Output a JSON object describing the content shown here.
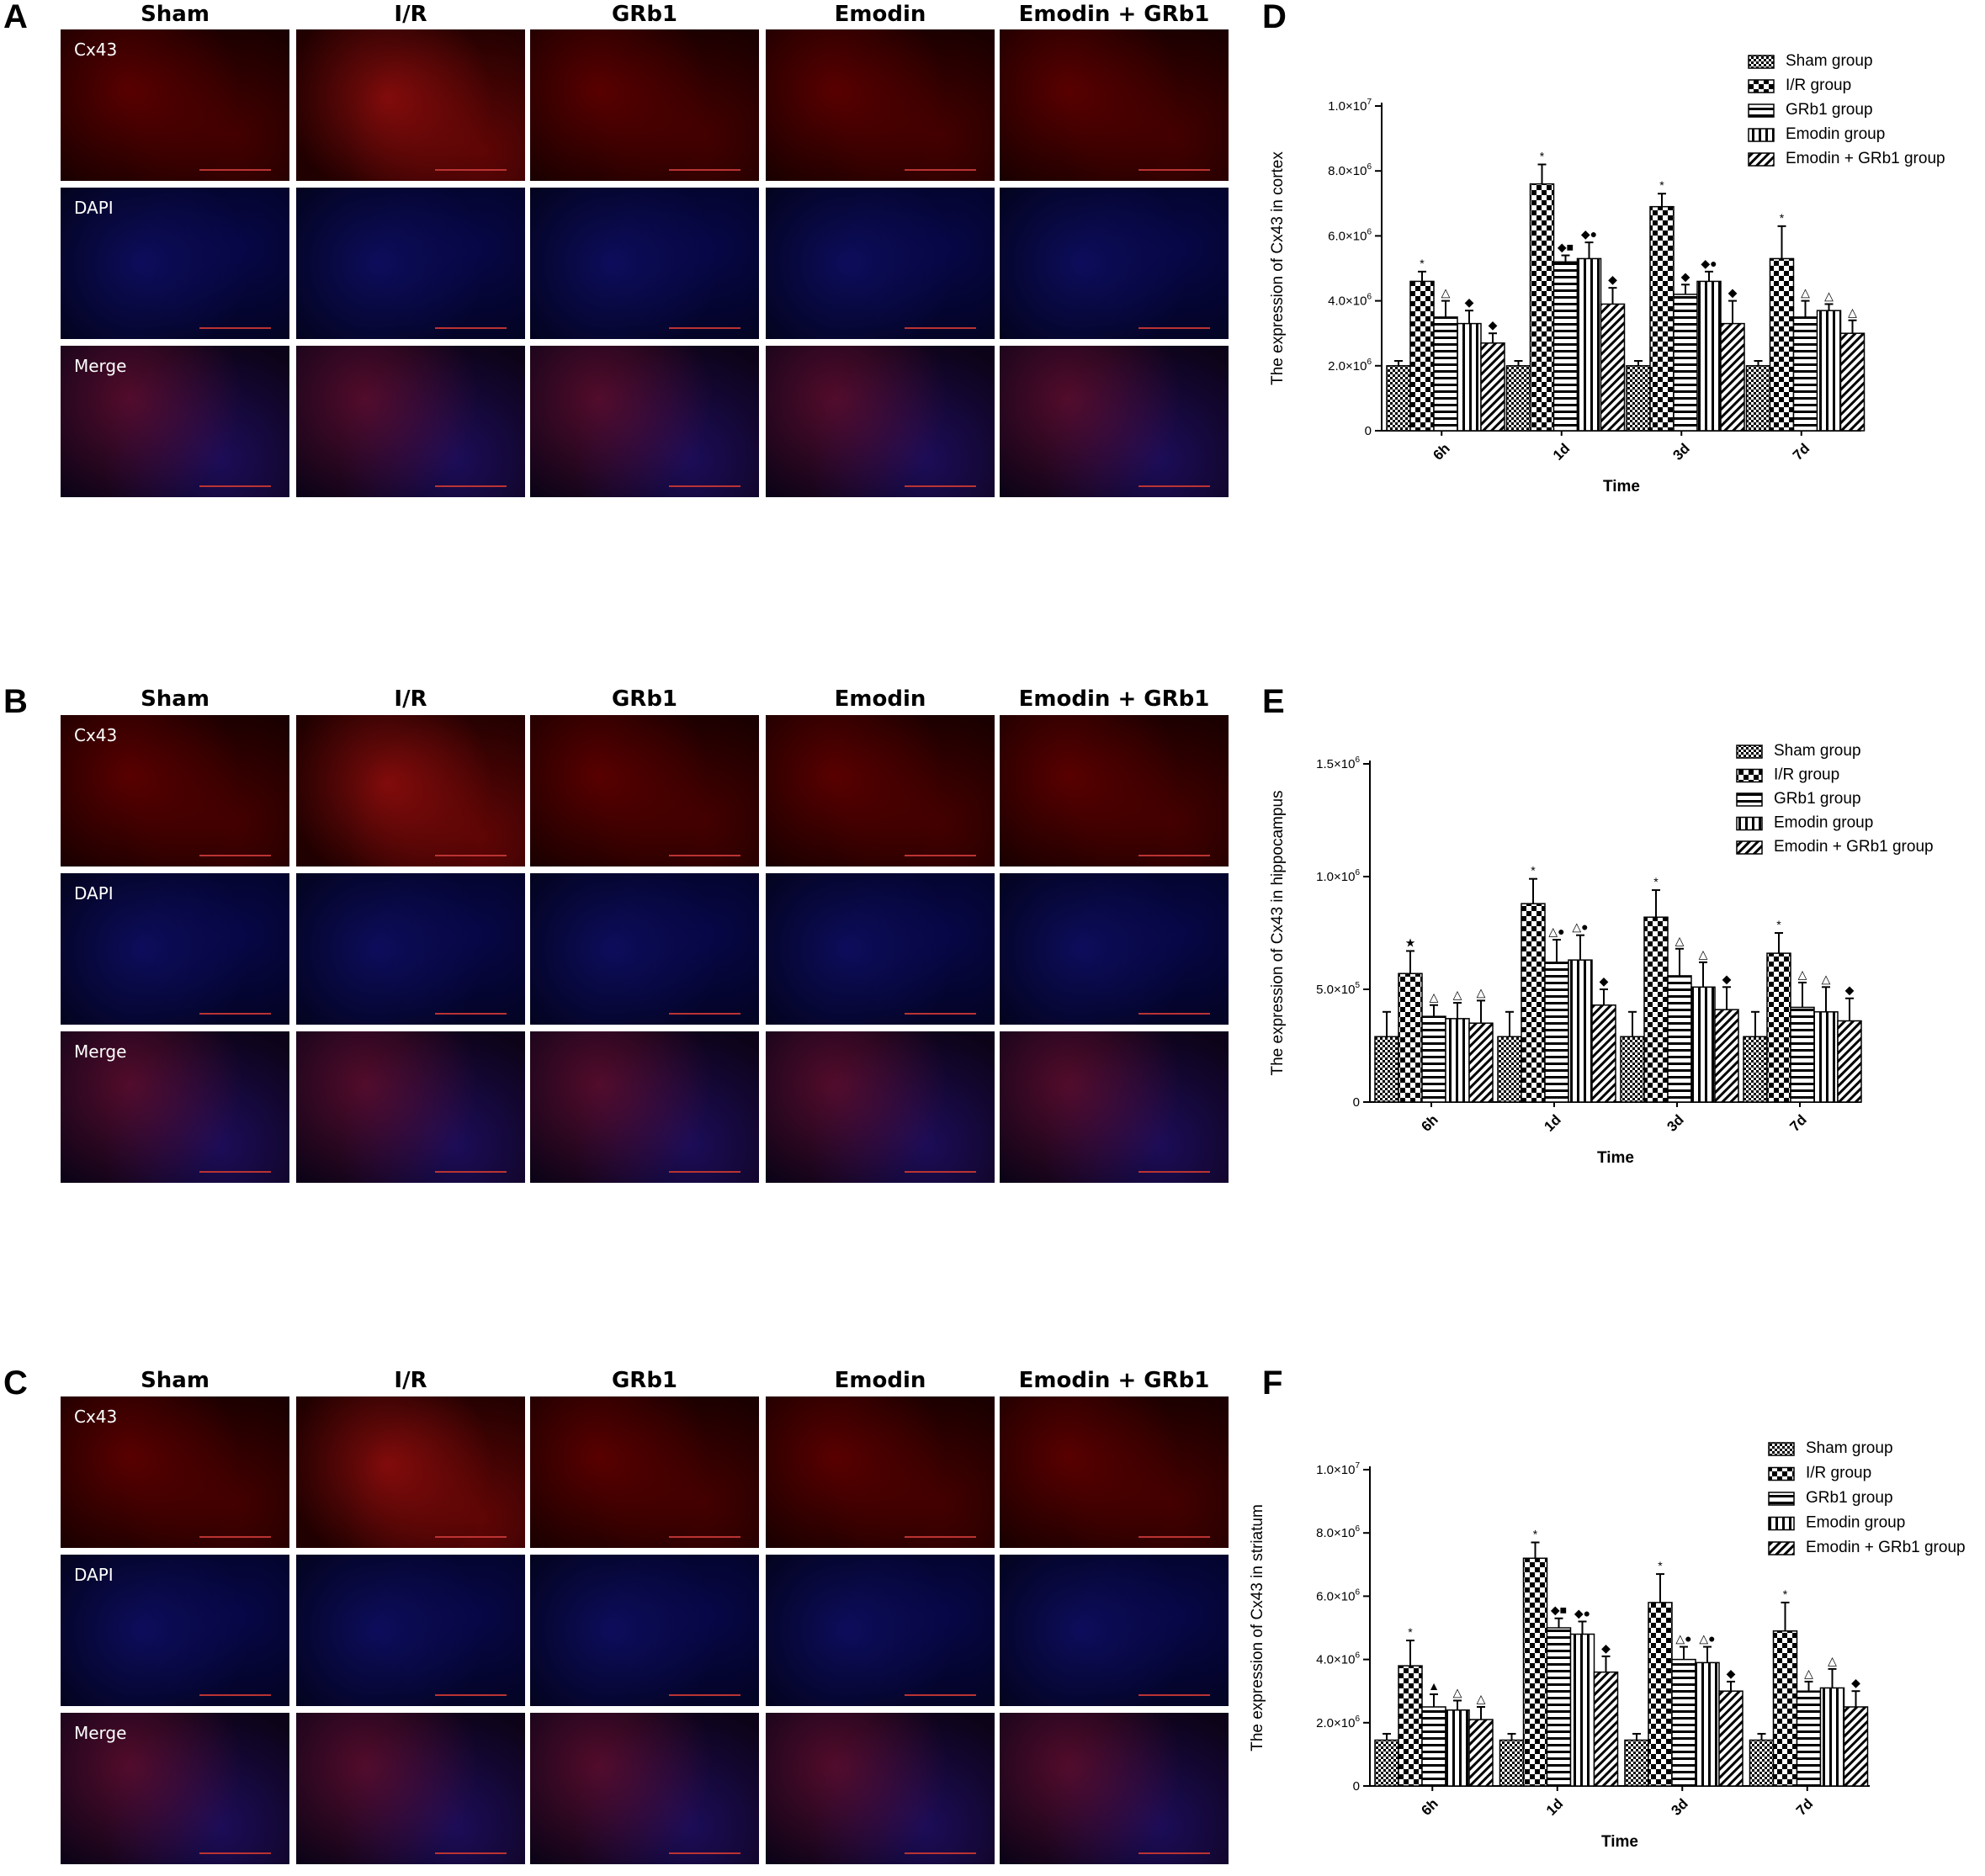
{
  "figure": {
    "panel_letters": [
      "A",
      "B",
      "C",
      "D",
      "E",
      "F"
    ],
    "column_titles": [
      "Sham",
      "I/R",
      "GRb1",
      "Emodin",
      "Emodin + GRb1"
    ],
    "row_labels": [
      "Cx43",
      "DAPI",
      "Merge"
    ]
  },
  "colors": {
    "cx43_red": "#c8141e",
    "dapi_blue": "#1e1ec8",
    "axis": "#000000"
  },
  "chart_data": [
    {
      "panel": "D",
      "type": "bar",
      "title": "",
      "xlabel": "Time",
      "ylabel": "The expression of Cx43 in cortex",
      "categories": [
        "6h",
        "1d",
        "3d",
        "7d"
      ],
      "ylim": [
        0,
        10000000
      ],
      "yticks": [
        0,
        2000000,
        4000000,
        6000000,
        8000000,
        10000000
      ],
      "ytick_labels": [
        "0",
        "2.0x10^6",
        "4.0x10^6",
        "6.0x10^6",
        "8.0x10^6",
        "1.0x10^7"
      ],
      "legend_position": "top-right",
      "series": [
        {
          "name": "Sham group",
          "pattern": "checker-small",
          "values": [
            2000000,
            2000000,
            2000000,
            2000000
          ],
          "errors": [
            150000,
            150000,
            150000,
            150000
          ],
          "marks": [
            "",
            "",
            "",
            ""
          ]
        },
        {
          "name": "I/R group",
          "pattern": "checker-large",
          "values": [
            4600000,
            7600000,
            6900000,
            5300000
          ],
          "errors": [
            300000,
            600000,
            400000,
            1000000
          ],
          "marks": [
            "*",
            "*",
            "*",
            "*"
          ]
        },
        {
          "name": "GRb1 group",
          "pattern": "horizontal",
          "values": [
            3500000,
            5200000,
            4200000,
            3500000
          ],
          "errors": [
            500000,
            200000,
            300000,
            500000
          ],
          "marks": [
            "△",
            "◆■",
            "◆",
            "△"
          ]
        },
        {
          "name": "Emodin group",
          "pattern": "vertical",
          "values": [
            3300000,
            5300000,
            4600000,
            3700000
          ],
          "errors": [
            400000,
            500000,
            300000,
            200000
          ],
          "marks": [
            "◆",
            "◆●",
            "◆●",
            "△"
          ]
        },
        {
          "name": "Emodin + GRb1 group",
          "pattern": "diagonal",
          "values": [
            2700000,
            3900000,
            3300000,
            3000000
          ],
          "errors": [
            300000,
            500000,
            700000,
            400000
          ],
          "marks": [
            "◆",
            "◆",
            "◆",
            "△"
          ]
        }
      ]
    },
    {
      "panel": "E",
      "type": "bar",
      "title": "",
      "xlabel": "Time",
      "ylabel": "The expression of Cx43 in hippocampus",
      "categories": [
        "6h",
        "1d",
        "3d",
        "7d"
      ],
      "ylim": [
        0,
        1500000
      ],
      "yticks": [
        0,
        500000,
        1000000,
        1500000
      ],
      "ytick_labels": [
        "0",
        "5.0x10^5",
        "1.0x10^6",
        "1.5x10^6"
      ],
      "legend_position": "top-right",
      "series": [
        {
          "name": "Sham group",
          "pattern": "checker-small",
          "values": [
            290000,
            290000,
            290000,
            290000
          ],
          "errors": [
            110000,
            110000,
            110000,
            110000
          ],
          "marks": [
            "",
            "",
            "",
            ""
          ]
        },
        {
          "name": "I/R group",
          "pattern": "checker-large",
          "values": [
            570000,
            880000,
            820000,
            660000
          ],
          "errors": [
            100000,
            110000,
            120000,
            90000
          ],
          "marks": [
            "★",
            "*",
            "*",
            "*"
          ]
        },
        {
          "name": "GRb1 group",
          "pattern": "horizontal",
          "values": [
            380000,
            620000,
            560000,
            420000
          ],
          "errors": [
            50000,
            100000,
            120000,
            110000
          ],
          "marks": [
            "△",
            "△●",
            "△",
            "△"
          ]
        },
        {
          "name": "Emodin group",
          "pattern": "vertical",
          "values": [
            370000,
            630000,
            510000,
            400000
          ],
          "errors": [
            70000,
            110000,
            110000,
            110000
          ],
          "marks": [
            "△",
            "△●",
            "△",
            "△"
          ]
        },
        {
          "name": "Emodin + GRb1 group",
          "pattern": "diagonal",
          "values": [
            350000,
            430000,
            410000,
            360000
          ],
          "errors": [
            100000,
            70000,
            100000,
            100000
          ],
          "marks": [
            "△",
            "◆",
            "◆",
            "◆"
          ]
        }
      ]
    },
    {
      "panel": "F",
      "type": "bar",
      "title": "",
      "xlabel": "Time",
      "ylabel": "The expression of Cx43 in striatum",
      "categories": [
        "6h",
        "1d",
        "3d",
        "7d"
      ],
      "ylim": [
        0,
        10000000
      ],
      "yticks": [
        0,
        2000000,
        4000000,
        6000000,
        8000000,
        10000000
      ],
      "ytick_labels": [
        "0",
        "2.0x10^6",
        "4.0x10^6",
        "6.0x10^6",
        "8.0x10^6",
        "1.0x10^7"
      ],
      "legend_position": "top-right",
      "series": [
        {
          "name": "Sham group",
          "pattern": "checker-small",
          "values": [
            1450000,
            1450000,
            1450000,
            1450000
          ],
          "errors": [
            200000,
            200000,
            200000,
            200000
          ],
          "marks": [
            "",
            "",
            "",
            ""
          ]
        },
        {
          "name": "I/R group",
          "pattern": "checker-large",
          "values": [
            3800000,
            7200000,
            5800000,
            4900000
          ],
          "errors": [
            800000,
            500000,
            900000,
            900000
          ],
          "marks": [
            "*",
            "*",
            "*",
            "*"
          ]
        },
        {
          "name": "GRb1 group",
          "pattern": "horizontal",
          "values": [
            2500000,
            5000000,
            4000000,
            3000000
          ],
          "errors": [
            400000,
            300000,
            400000,
            300000
          ],
          "marks": [
            "▲",
            "◆■",
            "△●",
            "△"
          ]
        },
        {
          "name": "Emodin group",
          "pattern": "vertical",
          "values": [
            2400000,
            4800000,
            3900000,
            3100000
          ],
          "errors": [
            300000,
            400000,
            500000,
            600000
          ],
          "marks": [
            "△",
            "◆●",
            "△●",
            "△"
          ]
        },
        {
          "name": "Emodin + GRb1 group",
          "pattern": "diagonal",
          "values": [
            2100000,
            3600000,
            3000000,
            2500000
          ],
          "errors": [
            400000,
            500000,
            300000,
            500000
          ],
          "marks": [
            "△",
            "◆",
            "◆",
            "◆"
          ]
        }
      ]
    }
  ]
}
